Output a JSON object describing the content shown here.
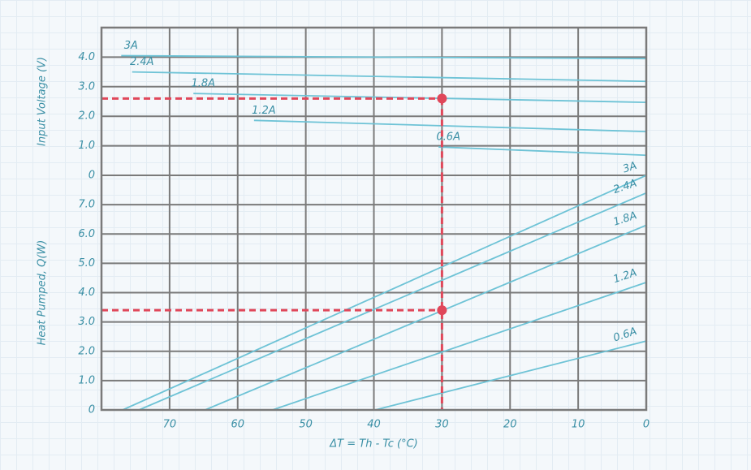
{
  "chart_data": [
    {
      "type": "line",
      "ylabel": "Input Voltage (V)",
      "xlim": [
        80,
        0
      ],
      "ylim": [
        0,
        5
      ],
      "yticks": [
        0,
        {
          "value": 1,
          "label": "1.0"
        },
        {
          "value": 2,
          "label": "2.0"
        },
        {
          "value": 3,
          "label": "3.0"
        },
        {
          "value": 4,
          "label": "4.0"
        }
      ],
      "grid": true,
      "series": [
        {
          "name": "3A",
          "color": "#6ec3d6",
          "x": [
            77.1,
            0
          ],
          "values": [
            4.05,
            3.95
          ]
        },
        {
          "name": "2.4A",
          "color": "#6ec3d6",
          "x": [
            75.5,
            0
          ],
          "values": [
            3.5,
            3.18
          ]
        },
        {
          "name": "1.8A",
          "color": "#6ec3d6",
          "x": [
            66.5,
            0
          ],
          "values": [
            2.77,
            2.47
          ]
        },
        {
          "name": "1.2A",
          "color": "#6ec3d6",
          "x": [
            57.6,
            0
          ],
          "values": [
            1.86,
            1.48
          ]
        },
        {
          "name": "0.6A",
          "color": "#6ec3d6",
          "x": [
            30.5,
            0
          ],
          "values": [
            0.96,
            0.68
          ]
        }
      ],
      "highlight": {
        "x": 30,
        "y": 2.6,
        "color": "#e0475a"
      }
    },
    {
      "type": "line",
      "ylabel": "Heat Pumped, Q(W)",
      "xlabel": "ΔT = Th - Tc (°C)",
      "xlim": [
        80,
        0
      ],
      "ylim": [
        0,
        8
      ],
      "xticks": [
        70,
        60,
        50,
        40,
        30,
        20,
        10,
        0
      ],
      "yticks": [
        0,
        {
          "value": 1,
          "label": "1.0"
        },
        {
          "value": 2,
          "label": "2.0"
        },
        {
          "value": 3,
          "label": "3.0"
        },
        {
          "value": 4,
          "label": "4.0"
        },
        {
          "value": 5,
          "label": "5.0"
        },
        {
          "value": 6,
          "label": "6.0"
        },
        {
          "value": 7,
          "label": "7.0"
        }
      ],
      "grid": true,
      "series": [
        {
          "name": "3A",
          "color": "#6ec3d6",
          "x": [
            76.9,
            0
          ],
          "values": [
            0,
            8.0
          ]
        },
        {
          "name": "2.4A",
          "color": "#6ec3d6",
          "x": [
            74.5,
            0
          ],
          "values": [
            0,
            7.4
          ]
        },
        {
          "name": "1.8A",
          "color": "#6ec3d6",
          "x": [
            64.8,
            0
          ],
          "values": [
            0,
            6.3
          ]
        },
        {
          "name": "1.2A",
          "color": "#6ec3d6",
          "x": [
            54.9,
            0
          ],
          "values": [
            0,
            4.35
          ]
        },
        {
          "name": "0.6A",
          "color": "#6ec3d6",
          "x": [
            39.8,
            0
          ],
          "values": [
            0,
            2.35
          ]
        }
      ],
      "highlight": {
        "x": 30,
        "y": 3.4,
        "color": "#e0475a"
      }
    }
  ]
}
